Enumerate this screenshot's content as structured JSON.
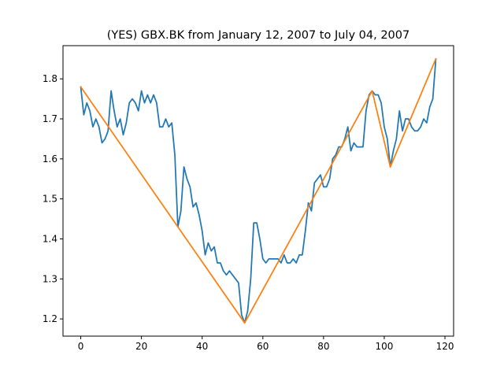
{
  "chart_data": {
    "type": "line",
    "title": "(YES) GBX.BK from January 12, 2007 to July 04, 2007",
    "xlabel": "",
    "ylabel": "",
    "xlim": [
      -5.85,
      122.85
    ],
    "ylim": [
      1.157,
      1.883
    ],
    "grid": false,
    "xticks": [
      0,
      20,
      40,
      60,
      80,
      100,
      120
    ],
    "yticks": [
      1.2,
      1.3,
      1.4,
      1.5,
      1.6,
      1.7,
      1.8
    ],
    "ytick_labels": [
      "1.2",
      "1.3",
      "1.4",
      "1.5",
      "1.6",
      "1.7",
      "1.8"
    ],
    "series": [
      {
        "color": "#1f77b4",
        "x": [
          0,
          1,
          2,
          3,
          4,
          5,
          6,
          7,
          8,
          9,
          10,
          11,
          12,
          13,
          14,
          15,
          16,
          17,
          18,
          19,
          20,
          21,
          22,
          23,
          24,
          25,
          26,
          27,
          28,
          29,
          30,
          31,
          32,
          33,
          34,
          35,
          36,
          37,
          38,
          39,
          40,
          41,
          42,
          43,
          44,
          45,
          46,
          47,
          48,
          49,
          50,
          51,
          52,
          53,
          54,
          55,
          56,
          57,
          58,
          59,
          60,
          61,
          62,
          63,
          64,
          65,
          66,
          67,
          68,
          69,
          70,
          71,
          72,
          73,
          74,
          75,
          76,
          77,
          78,
          79,
          80,
          81,
          82,
          83,
          84,
          85,
          86,
          87,
          88,
          89,
          90,
          91,
          92,
          93,
          94,
          95,
          96,
          97,
          98,
          99,
          100,
          101,
          102,
          103,
          104,
          105,
          106,
          107,
          108,
          109,
          110,
          111,
          112,
          113,
          114,
          115,
          116,
          117
        ],
        "values": [
          1.78,
          1.71,
          1.74,
          1.72,
          1.68,
          1.7,
          1.68,
          1.64,
          1.65,
          1.67,
          1.77,
          1.72,
          1.68,
          1.7,
          1.66,
          1.69,
          1.74,
          1.75,
          1.74,
          1.72,
          1.77,
          1.74,
          1.76,
          1.74,
          1.76,
          1.74,
          1.68,
          1.68,
          1.7,
          1.68,
          1.69,
          1.61,
          1.43,
          1.47,
          1.58,
          1.55,
          1.53,
          1.48,
          1.49,
          1.46,
          1.42,
          1.36,
          1.39,
          1.37,
          1.38,
          1.34,
          1.34,
          1.32,
          1.31,
          1.32,
          1.31,
          1.3,
          1.29,
          1.21,
          1.19,
          1.22,
          1.3,
          1.44,
          1.44,
          1.4,
          1.35,
          1.34,
          1.35,
          1.35,
          1.35,
          1.35,
          1.34,
          1.36,
          1.34,
          1.34,
          1.35,
          1.34,
          1.36,
          1.36,
          1.42,
          1.49,
          1.47,
          1.54,
          1.55,
          1.56,
          1.53,
          1.53,
          1.55,
          1.6,
          1.61,
          1.63,
          1.63,
          1.65,
          1.68,
          1.62,
          1.64,
          1.63,
          1.63,
          1.63,
          1.72,
          1.76,
          1.77,
          1.76,
          1.76,
          1.74,
          1.68,
          1.65,
          1.58,
          1.62,
          1.65,
          1.72,
          1.67,
          1.7,
          1.7,
          1.68,
          1.67,
          1.67,
          1.68,
          1.7,
          1.69,
          1.73,
          1.75,
          1.85
        ]
      },
      {
        "color": "#ff7f0e",
        "x": [
          0,
          32,
          54,
          96,
          102,
          117
        ],
        "values": [
          1.78,
          1.43,
          1.19,
          1.77,
          1.58,
          1.85
        ]
      }
    ]
  }
}
